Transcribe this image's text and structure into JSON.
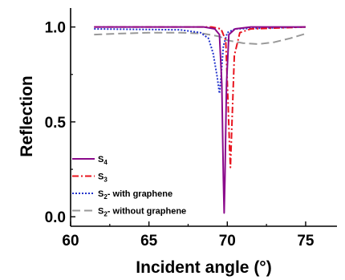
{
  "chart_data": {
    "type": "line",
    "xlabel": "Incident angle (°)",
    "ylabel": "Reflection",
    "xlim": [
      60,
      77
    ],
    "ylim": [
      -0.05,
      1.1
    ],
    "xticks": [
      60,
      65,
      70,
      75
    ],
    "yticks": [
      0.0,
      0.5,
      1.0
    ],
    "xtick_labels": [
      "60",
      "65",
      "70",
      "75"
    ],
    "ytick_labels": [
      "0.0",
      "0.5",
      "1.0"
    ],
    "grid": false,
    "legend_position": "bottom-left",
    "series": [
      {
        "name": "S4",
        "name_base": "S",
        "name_sub": "4",
        "name_suffix": "",
        "color": "#8b0a8b",
        "dash": "solid",
        "points": [
          [
            61.5,
            1.0
          ],
          [
            68.5,
            1.0
          ],
          [
            69.2,
            0.99
          ],
          [
            69.5,
            0.96
          ],
          [
            69.65,
            0.7
          ],
          [
            69.75,
            0.2
          ],
          [
            69.8,
            0.02
          ],
          [
            69.85,
            0.2
          ],
          [
            69.95,
            0.7
          ],
          [
            70.1,
            0.96
          ],
          [
            70.5,
            0.99
          ],
          [
            71.5,
            1.0
          ],
          [
            75,
            1.0
          ]
        ]
      },
      {
        "name": "S3",
        "name_base": "S",
        "name_sub": "3",
        "name_suffix": "",
        "color": "#e8141e",
        "dash": "8,3,2,3",
        "points": [
          [
            61.5,
            1.0
          ],
          [
            69.0,
            1.0
          ],
          [
            69.6,
            0.99
          ],
          [
            69.9,
            0.93
          ],
          [
            70.05,
            0.6
          ],
          [
            70.15,
            0.35
          ],
          [
            70.2,
            0.26
          ],
          [
            70.28,
            0.45
          ],
          [
            70.45,
            0.85
          ],
          [
            70.8,
            0.97
          ],
          [
            71.5,
            0.99
          ],
          [
            75,
            1.0
          ]
        ]
      },
      {
        "name": "S2- with graphene",
        "name_base": "S",
        "name_sub": "2",
        "name_suffix": "- with graphene",
        "color": "#2233cc",
        "dash": "2,2",
        "points": [
          [
            61.5,
            0.99
          ],
          [
            67.0,
            0.985
          ],
          [
            68.3,
            0.97
          ],
          [
            68.8,
            0.94
          ],
          [
            69.1,
            0.86
          ],
          [
            69.35,
            0.74
          ],
          [
            69.5,
            0.65
          ],
          [
            69.6,
            0.74
          ],
          [
            69.75,
            0.9
          ],
          [
            70.0,
            0.97
          ],
          [
            70.5,
            0.99
          ],
          [
            75,
            1.0
          ]
        ]
      },
      {
        "name": "S2- without graphene",
        "name_base": "S",
        "name_sub": "2",
        "name_suffix": "- without graphene",
        "color": "#999999",
        "dash": "10,5",
        "points": [
          [
            61.5,
            0.96
          ],
          [
            63.0,
            0.965
          ],
          [
            65.0,
            0.97
          ],
          [
            67.0,
            0.97
          ],
          [
            68.5,
            0.965
          ],
          [
            69.5,
            0.95
          ],
          [
            70.0,
            0.93
          ],
          [
            71.0,
            0.915
          ],
          [
            72.0,
            0.91
          ],
          [
            73.0,
            0.92
          ],
          [
            74.0,
            0.94
          ],
          [
            75.0,
            0.965
          ]
        ]
      }
    ]
  }
}
